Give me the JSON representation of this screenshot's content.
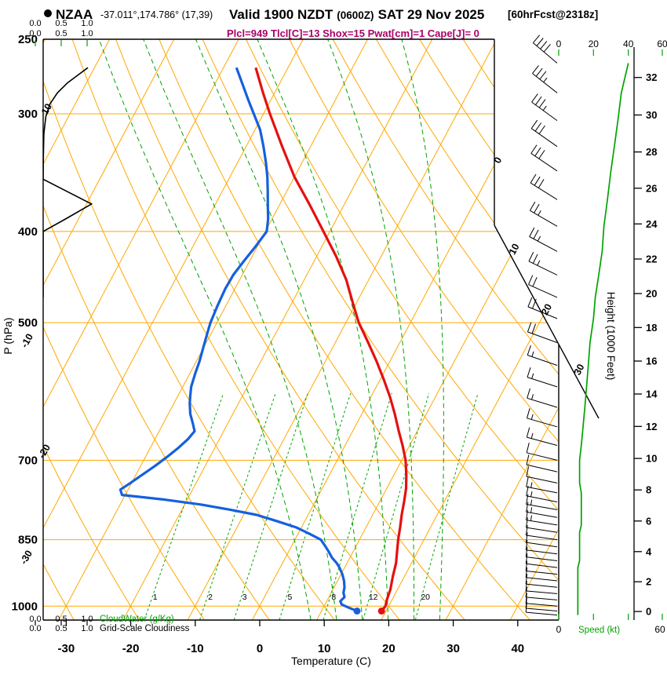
{
  "colors": {
    "grid_orange": "#ffa800",
    "green": "#00a300",
    "temp_red": "#e51010",
    "dewpoint_blue": "#1560dd",
    "params_magenta": "#aa0066",
    "black": "#000000"
  },
  "header": {
    "station": "NZAA",
    "coords": "-37.011°,174.786° (17,39)",
    "valid": "Valid 1900 NZDT",
    "valid_z": "(0600Z)",
    "valid_date": "SAT 29 Nov 2025",
    "fcst": "[60hrFcst@2318z]",
    "params": "Plcl=949 Tlcl[C]=13 Shox=15 Pwat[cm]=1 Cape[J]= 0"
  },
  "axes": {
    "pressure_label": "P (hPa)",
    "temperature_label": "Temperature (C)",
    "height_label": "Height (1000 Feet)",
    "speed_label": "Speed (kt)",
    "cloudwater_label": "CloudWater (g/Kg)",
    "cloudiness_label": "Grid-Scale Cloudiness",
    "pressure_ticks": [
      250,
      300,
      400,
      500,
      700,
      850,
      1000
    ],
    "temperature_ticks": [
      -30,
      -20,
      -10,
      0,
      10,
      20,
      30,
      40
    ],
    "height_ticks": [
      0,
      2,
      4,
      6,
      8,
      10,
      12,
      14,
      16,
      18,
      20,
      22,
      24,
      26,
      28,
      30,
      32
    ],
    "speed_ticks_top": [
      0,
      20,
      40,
      60
    ],
    "speed_ticks_bottom": [
      0,
      60
    ],
    "cloud_scale_ticks": [
      "0.0",
      "0.5",
      "1.0"
    ],
    "mixing_ratio_labels": [
      1,
      2,
      3,
      5,
      8,
      12,
      20
    ],
    "isotherm_edge_labels": [
      0,
      10,
      20,
      30
    ],
    "dry_adiabat_edge_labels": [
      10,
      -10,
      -20,
      -30
    ]
  },
  "chart_data": {
    "type": "line",
    "subtype": "skew-t-log-p-sounding",
    "title": "NZAA -37.011°,174.786° (17,39) Valid 1900 NZDT (0600Z) SAT 29 Nov 2025 [60hrFcst@2318z]",
    "xlabel": "Temperature (C)",
    "ylabel": "P (hPa)",
    "y2label": "Height (1000 Feet)",
    "xlim_c": [
      -35,
      45
    ],
    "ylim_hpa": [
      1030,
      250
    ],
    "temperature_profile_c": [
      [
        1012,
        19.3
      ],
      [
        1000,
        19.5
      ],
      [
        985,
        19.2
      ],
      [
        960,
        18.9
      ],
      [
        930,
        18.2
      ],
      [
        900,
        17.6
      ],
      [
        875,
        16.8
      ],
      [
        850,
        16.0
      ],
      [
        825,
        15.3
      ],
      [
        800,
        14.5
      ],
      [
        775,
        13.8
      ],
      [
        750,
        13.0
      ],
      [
        725,
        11.9
      ],
      [
        700,
        10.6
      ],
      [
        675,
        8.9
      ],
      [
        650,
        7.0
      ],
      [
        625,
        5.1
      ],
      [
        600,
        3.0
      ],
      [
        575,
        0.6
      ],
      [
        550,
        -2.0
      ],
      [
        525,
        -4.9
      ],
      [
        500,
        -8.0
      ],
      [
        475,
        -10.7
      ],
      [
        450,
        -13.5
      ],
      [
        425,
        -17.0
      ],
      [
        400,
        -21.0
      ],
      [
        375,
        -25.3
      ],
      [
        350,
        -30.0
      ],
      [
        325,
        -34.4
      ],
      [
        300,
        -39.0
      ],
      [
        285,
        -41.8
      ],
      [
        268,
        -45.0
      ]
    ],
    "dewpoint_profile_c": [
      [
        1012,
        15.5
      ],
      [
        1003,
        13.8
      ],
      [
        996,
        12.6
      ],
      [
        988,
        12.1
      ],
      [
        978,
        12.4
      ],
      [
        968,
        11.9
      ],
      [
        955,
        11.6
      ],
      [
        940,
        11.0
      ],
      [
        925,
        10.2
      ],
      [
        910,
        9.2
      ],
      [
        900,
        8.4
      ],
      [
        888,
        7.2
      ],
      [
        875,
        6.2
      ],
      [
        862,
        5.1
      ],
      [
        850,
        4.0
      ],
      [
        838,
        1.8
      ],
      [
        825,
        -0.8
      ],
      [
        812,
        -4.4
      ],
      [
        800,
        -8.0
      ],
      [
        790,
        -12.5
      ],
      [
        780,
        -17.5
      ],
      [
        770,
        -24.0
      ],
      [
        762,
        -30.5
      ],
      [
        752,
        -31.2
      ],
      [
        740,
        -30.2
      ],
      [
        725,
        -29.0
      ],
      [
        710,
        -27.8
      ],
      [
        695,
        -26.7
      ],
      [
        680,
        -25.7
      ],
      [
        665,
        -24.9
      ],
      [
        652,
        -24.5
      ],
      [
        640,
        -25.4
      ],
      [
        625,
        -26.6
      ],
      [
        610,
        -27.5
      ],
      [
        600,
        -28.0
      ],
      [
        585,
        -28.7
      ],
      [
        565,
        -29.2
      ],
      [
        550,
        -29.5
      ],
      [
        530,
        -30.1
      ],
      [
        510,
        -30.7
      ],
      [
        500,
        -31.0
      ],
      [
        480,
        -31.3
      ],
      [
        460,
        -31.5
      ],
      [
        445,
        -31.4
      ],
      [
        430,
        -30.9
      ],
      [
        415,
        -30.3
      ],
      [
        400,
        -29.8
      ],
      [
        388,
        -30.6
      ],
      [
        375,
        -31.8
      ],
      [
        362,
        -33.0
      ],
      [
        350,
        -34.2
      ],
      [
        338,
        -35.6
      ],
      [
        325,
        -37.3
      ],
      [
        312,
        -39.2
      ],
      [
        300,
        -41.5
      ],
      [
        290,
        -43.5
      ],
      [
        280,
        -45.5
      ],
      [
        268,
        -48.0
      ]
    ],
    "surface_markers": {
      "temperature_c": [
        1012,
        19.3
      ],
      "dewpoint_c": [
        1012,
        15.5
      ]
    },
    "cloudiness_profile": [
      [
        268,
        1.0
      ],
      [
        272,
        0.82
      ],
      [
        278,
        0.55
      ],
      [
        285,
        0.32
      ],
      [
        293,
        0.15
      ],
      [
        302,
        0.06
      ],
      [
        315,
        0.015
      ],
      [
        332,
        0.005
      ],
      [
        352,
        0.0
      ],
      [
        362,
        0.5
      ],
      [
        374,
        1.08
      ],
      [
        388,
        0.5
      ],
      [
        400,
        0.0
      ],
      [
        430,
        0.0
      ],
      [
        470,
        0.0
      ]
    ],
    "wind_profile_p_dir_kt": [
      [
        265,
        310,
        40
      ],
      [
        285,
        308,
        36
      ],
      [
        305,
        306,
        34
      ],
      [
        325,
        305,
        32
      ],
      [
        345,
        304,
        30
      ],
      [
        370,
        302,
        28
      ],
      [
        395,
        300,
        26
      ],
      [
        420,
        298,
        25
      ],
      [
        445,
        296,
        23
      ],
      [
        470,
        294,
        21
      ],
      [
        495,
        292,
        20
      ],
      [
        525,
        290,
        18
      ],
      [
        555,
        289,
        17
      ],
      [
        585,
        288,
        16
      ],
      [
        615,
        287,
        15
      ],
      [
        645,
        286,
        14
      ],
      [
        675,
        285,
        13
      ],
      [
        700,
        284,
        12
      ],
      [
        720,
        283,
        12
      ],
      [
        740,
        282,
        12
      ],
      [
        758,
        281,
        13
      ],
      [
        775,
        281,
        13
      ],
      [
        790,
        280,
        13
      ],
      [
        805,
        280,
        13
      ],
      [
        820,
        279,
        13
      ],
      [
        835,
        279,
        12
      ],
      [
        850,
        278,
        12
      ],
      [
        865,
        278,
        12
      ],
      [
        880,
        277,
        12
      ],
      [
        895,
        277,
        12
      ],
      [
        910,
        277,
        11
      ],
      [
        925,
        276,
        11
      ],
      [
        940,
        276,
        11
      ],
      [
        955,
        276,
        11
      ],
      [
        970,
        275,
        11
      ],
      [
        985,
        275,
        11
      ],
      [
        1000,
        275,
        11
      ],
      [
        1012,
        275,
        11
      ],
      [
        1022,
        275,
        11
      ]
    ]
  }
}
